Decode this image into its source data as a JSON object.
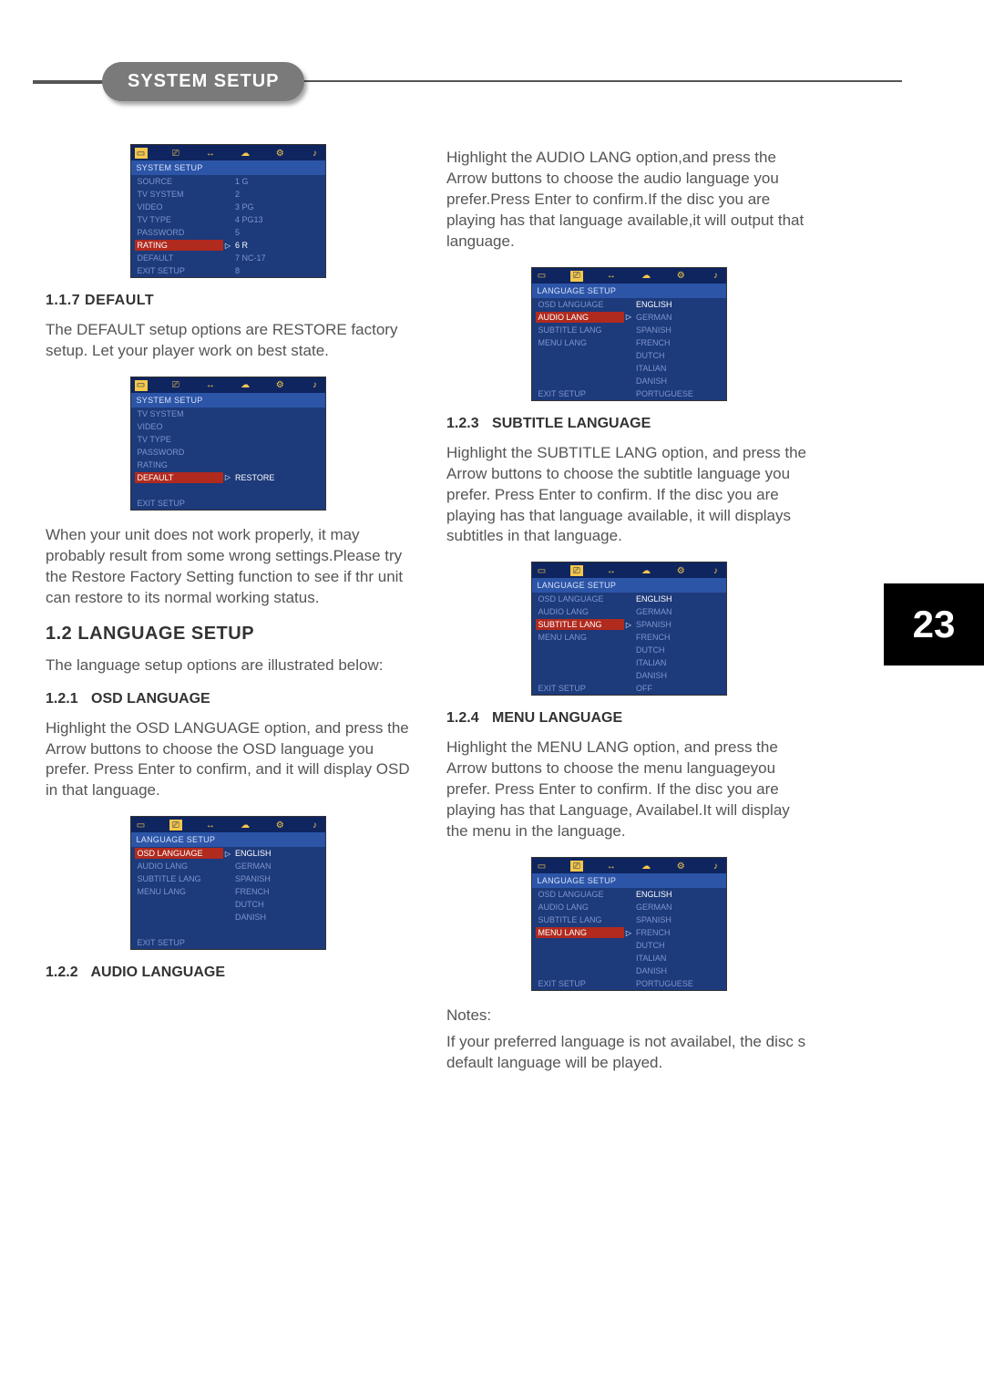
{
  "page_number": "23",
  "title_pill": "SYSTEM SETUP",
  "headings": {
    "s117": "1.1.7  DEFAULT",
    "s12": "1.2  LANGUAGE SETUP",
    "s121_num": "1.2.1",
    "s121_t": "OSD LANGUAGE",
    "s122_num": "1.2.2",
    "s122_t": "AUDIO LANGUAGE",
    "s123_num": "1.2.3",
    "s123_t": "SUBTITLE LANGUAGE",
    "s124_num": "1.2.4",
    "s124_t": "MENU LANGUAGE"
  },
  "paras": {
    "p_default": "The DEFAULT setup options are RESTORE factory setup. Let your player work on best state.",
    "p_restore": "When your unit does not work properly, it may probably result from some wrong settings.Please try the Restore Factory Setting  function to see if thr unit can restore to its normal working status.",
    "p_langintro": "The language setup options are illustrated below:",
    "p_osd": "Highlight the OSD LANGUAGE option, and press the Arrow buttons to choose the OSD language you prefer. Press Enter to confirm, and it will display OSD in that language.",
    "p_audio": "Highlight the AUDIO LANG option,and press the Arrow buttons to choose the audio language you prefer.Press Enter to confirm.If the disc you are playing has that language available,it will output that language.",
    "p_sub": "Highlight  the SUBTITLE LANG option, and press the Arrow buttons to choose the subtitle language you prefer. Press Enter to confirm. If the disc you are playing has that language available, it will displays subtitles in that language.",
    "p_menu": "Highlight the MENU LANG option, and press the Arrow buttons to choose the menu languageyou prefer. Press Enter to confirm. If the disc you are playing has that Language, Availabel.It will display the menu in the language.",
    "p_notes_h": "Notes:",
    "p_notes": "If your preferred language is not availabel, the disc s default language will be played."
  },
  "screens": {
    "rating": {
      "header": "SYSTEM SETUP",
      "left": [
        "SOURCE",
        "TV SYSTEM",
        "VIDEO",
        "TV TYPE",
        "PASSWORD",
        "RATING",
        "DEFAULT",
        "EXIT SETUP"
      ],
      "right": [
        "1 G",
        "2",
        "3 PG",
        "4 PG13",
        "5",
        "6 R",
        "7 NC-17",
        "8"
      ],
      "selected_left_index": 5,
      "white_right_index": 5
    },
    "default": {
      "header": "SYSTEM SETUP",
      "left": [
        "TV SYSTEM",
        "VIDEO",
        "TV TYPE",
        "PASSWORD",
        "RATING",
        "DEFAULT",
        "",
        "EXIT SETUP"
      ],
      "right": [
        "",
        "",
        "",
        "",
        "",
        "RESTORE",
        "",
        ""
      ],
      "selected_left_index": 5,
      "white_right_index": 5
    },
    "osd": {
      "header": "LANGUAGE SETUP",
      "left": [
        "OSD LANGUAGE",
        "AUDIO LANG",
        "SUBTITLE LANG",
        "MENU LANG",
        "",
        "",
        "",
        "EXIT SETUP"
      ],
      "right": [
        "ENGLISH",
        "GERMAN",
        "SPANISH",
        "FRENCH",
        "DUTCH",
        "DANISH",
        "",
        ""
      ],
      "selected_left_index": 0,
      "white_right_index": 0
    },
    "audio": {
      "header": "LANGUAGE SETUP",
      "left": [
        "OSD LANGUAGE",
        "AUDIO LANG",
        "SUBTITLE LANG",
        "MENU LANG",
        "",
        "",
        "",
        "EXIT SETUP"
      ],
      "right": [
        "ENGLISH",
        "GERMAN",
        "SPANISH",
        "FRENCH",
        "DUTCH",
        "ITALIAN",
        "DANISH",
        "PORTUGUESE"
      ],
      "selected_left_index": 1,
      "white_right_index": 0
    },
    "subtitle": {
      "header": "LANGUAGE SETUP",
      "left": [
        "OSD LANGUAGE",
        "AUDIO LANG",
        "SUBTITLE LANG",
        "MENU LANG",
        "",
        "",
        "",
        "EXIT SETUP"
      ],
      "right": [
        "ENGLISH",
        "GERMAN",
        "SPANISH",
        "FRENCH",
        "DUTCH",
        "ITALIAN",
        "DANISH",
        "OFF"
      ],
      "selected_left_index": 2,
      "white_right_index": 0
    },
    "menu": {
      "header": "LANGUAGE SETUP",
      "left": [
        "OSD LANGUAGE",
        "AUDIO LANG",
        "SUBTITLE LANG",
        "MENU LANG",
        "",
        "",
        "",
        "EXIT SETUP"
      ],
      "right": [
        "ENGLISH",
        "GERMAN",
        "SPANISH",
        "FRENCH",
        "DUTCH",
        "ITALIAN",
        "DANISH",
        "PORTUGUESE"
      ],
      "selected_left_index": 3,
      "white_right_index": 0
    }
  },
  "style": {
    "icon_glyphs": [
      "▭",
      "⎚",
      "↔",
      "☁",
      "⚙",
      "♪"
    ],
    "colors": {
      "bg": "#ffffff",
      "text": "#4a4a4a",
      "heading": "#333333",
      "pill_bg": "#7a7a7a",
      "screen_bg": "#1d3a7a",
      "screen_head": "#2c55a8",
      "screen_iconbar": "#0f2560",
      "screen_dim": "#7e95cf",
      "screen_sel": "#b02a1e",
      "icon_yellow": "#f5c84a"
    },
    "fonts": {
      "body_pt": 17,
      "small_pt": 9,
      "heading_pt": 16,
      "section_pt": 20,
      "pagebadge_pt": 42
    }
  }
}
